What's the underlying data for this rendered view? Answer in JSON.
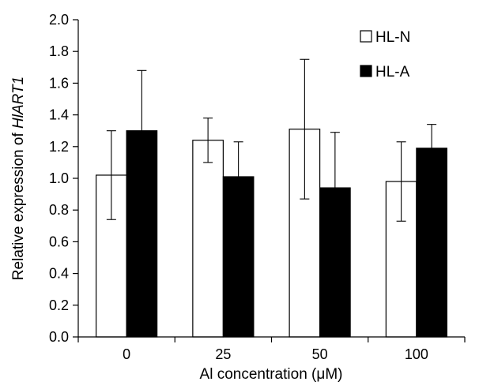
{
  "chart_data": {
    "type": "bar",
    "categories": [
      "0",
      "25",
      "50",
      "100"
    ],
    "series": [
      {
        "name": "HL-N",
        "fill": "#ffffff",
        "values": [
          1.02,
          1.24,
          1.31,
          0.98
        ],
        "errors": [
          0.28,
          0.14,
          0.44,
          0.25
        ]
      },
      {
        "name": "HL-A",
        "fill": "#000000",
        "values": [
          1.3,
          1.01,
          0.94,
          1.19
        ],
        "errors": [
          0.38,
          0.22,
          0.35,
          0.15
        ]
      }
    ],
    "xlabel": "Al concentration (μM)",
    "ylabel_prefix": "Relative expression of ",
    "ylabel_gene": "HlART1",
    "ylim": [
      0.0,
      2.0
    ],
    "yticks": [
      "0.0",
      "0.2",
      "0.4",
      "0.6",
      "0.8",
      "1.0",
      "1.2",
      "1.4",
      "1.6",
      "1.8",
      "2.0"
    ],
    "legend_position": "top-right",
    "grid": false
  }
}
